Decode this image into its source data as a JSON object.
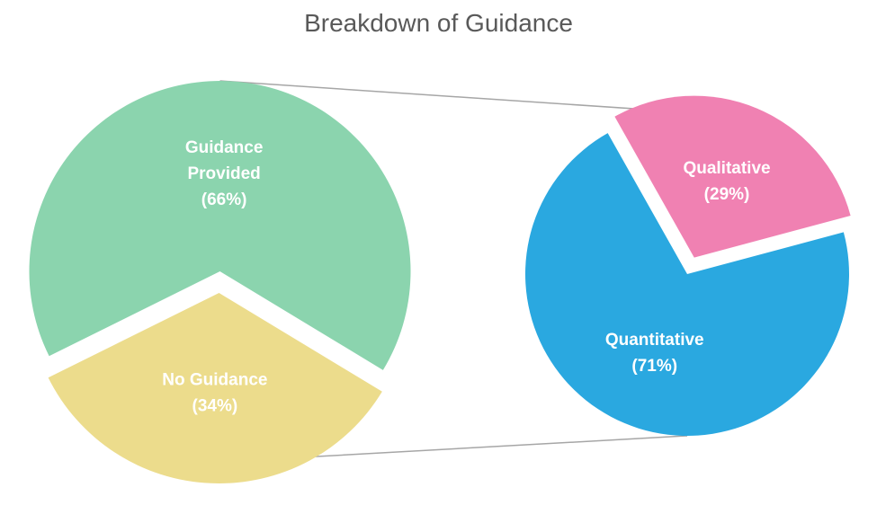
{
  "chart_data": {
    "type": "pie",
    "subtype": "pie-of-pie",
    "title": "Breakdown of Guidance",
    "main_pie": {
      "slices": [
        {
          "label_lines": [
            "No Guidance",
            "(34%)"
          ],
          "value": 34,
          "color": "#ECDC8C",
          "exploded": true
        },
        {
          "label_lines": [
            "Guidance",
            "Provided",
            "(66%)"
          ],
          "value": 66,
          "color": "#8BD4AE",
          "exploded": true
        }
      ]
    },
    "secondary_pie": {
      "breakdown_of": "Guidance Provided",
      "slices": [
        {
          "label_lines": [
            "Quantitative",
            "(71%)"
          ],
          "value": 71,
          "color": "#2AA8E0",
          "exploded": false
        },
        {
          "label_lines": [
            "Qualitative",
            "(29%)"
          ],
          "value": 29,
          "color": "#F081B2",
          "exploded": true
        }
      ]
    },
    "connector_color": "#A6A6A6",
    "legend": "none"
  }
}
